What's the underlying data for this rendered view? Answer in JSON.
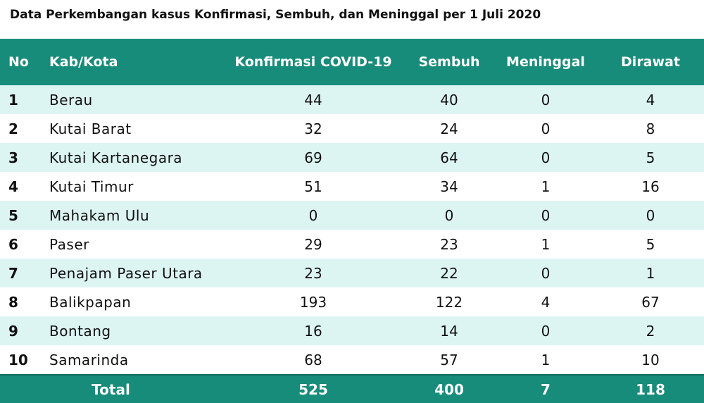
{
  "title": "Data Perkembangan kasus Konfirmasi, Sembuh, dan Meninggal per 1 Juli 2020",
  "table": {
    "columns": [
      "No",
      "Kab/Kota",
      "Konfirmasi COVID-19",
      "Sembuh",
      "Meninggal",
      "Dirawat"
    ],
    "rows": [
      {
        "no": "1",
        "kab": "Berau",
        "konfirmasi": "44",
        "sembuh": "40",
        "meninggal": "0",
        "dirawat": "4"
      },
      {
        "no": "2",
        "kab": "Kutai Barat",
        "konfirmasi": "32",
        "sembuh": "24",
        "meninggal": "0",
        "dirawat": "8"
      },
      {
        "no": "3",
        "kab": "Kutai Kartanegara",
        "konfirmasi": "69",
        "sembuh": "64",
        "meninggal": "0",
        "dirawat": "5"
      },
      {
        "no": "4",
        "kab": "Kutai Timur",
        "konfirmasi": "51",
        "sembuh": "34",
        "meninggal": "1",
        "dirawat": "16"
      },
      {
        "no": "5",
        "kab": "Mahakam Ulu",
        "konfirmasi": "0",
        "sembuh": "0",
        "meninggal": "0",
        "dirawat": "0"
      },
      {
        "no": "6",
        "kab": "Paser",
        "konfirmasi": "29",
        "sembuh": "23",
        "meninggal": "1",
        "dirawat": "5"
      },
      {
        "no": "7",
        "kab": "Penajam Paser Utara",
        "konfirmasi": "23",
        "sembuh": "22",
        "meninggal": "0",
        "dirawat": "1"
      },
      {
        "no": "8",
        "kab": "Balikpapan",
        "konfirmasi": "193",
        "sembuh": "122",
        "meninggal": "4",
        "dirawat": "67"
      },
      {
        "no": "9",
        "kab": "Bontang",
        "konfirmasi": "16",
        "sembuh": "14",
        "meninggal": "0",
        "dirawat": "2"
      },
      {
        "no": "10",
        "kab": "Samarinda",
        "konfirmasi": "68",
        "sembuh": "57",
        "meninggal": "1",
        "dirawat": "10"
      }
    ],
    "total": {
      "label": "Total",
      "konfirmasi": "525",
      "sembuh": "400",
      "meninggal": "7",
      "dirawat": "118"
    }
  },
  "colors": {
    "header_bg": "#178c7a",
    "stripe_bg": "#dcf5f3",
    "header_text": "#ffffff"
  }
}
